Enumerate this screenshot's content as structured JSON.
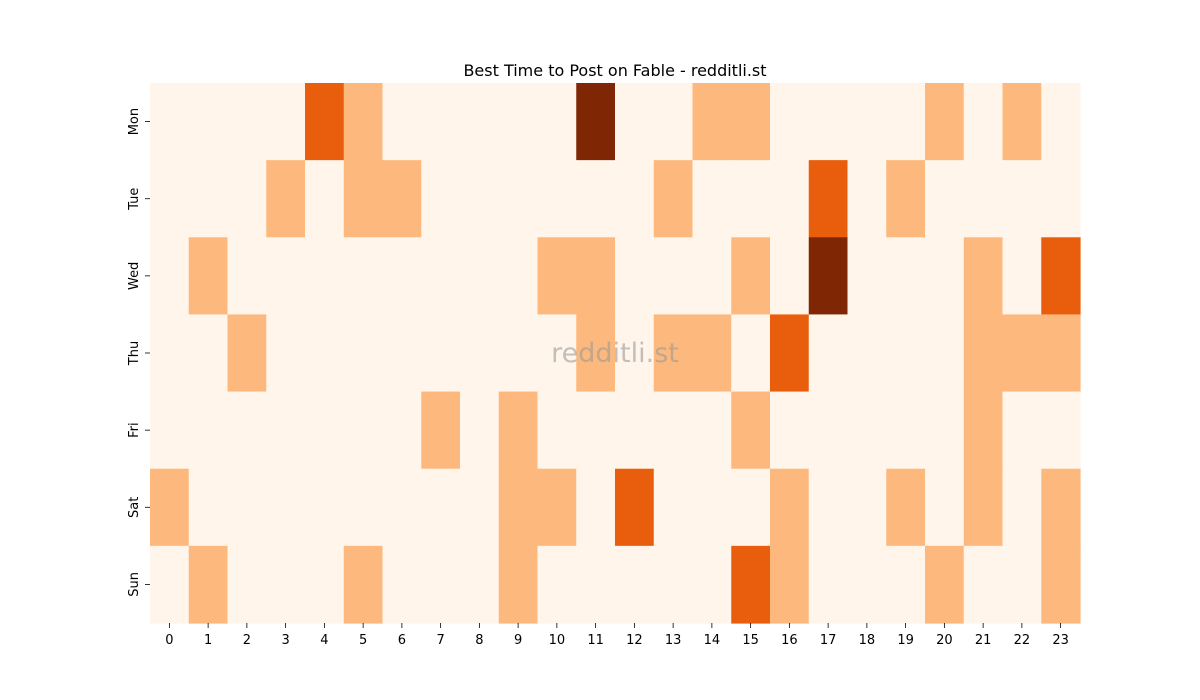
{
  "chart_data": {
    "type": "heatmap",
    "title": "Best Time to Post on Fable - redditli.st",
    "watermark": "redditli.st",
    "x": [
      "0",
      "1",
      "2",
      "3",
      "4",
      "5",
      "6",
      "7",
      "8",
      "9",
      "10",
      "11",
      "12",
      "13",
      "14",
      "15",
      "16",
      "17",
      "18",
      "19",
      "20",
      "21",
      "22",
      "23"
    ],
    "y": [
      "Mon",
      "Tue",
      "Wed",
      "Thu",
      "Fri",
      "Sat",
      "Sun"
    ],
    "values": [
      [
        0,
        0,
        0,
        0,
        2,
        1,
        0,
        0,
        0,
        0,
        0,
        3,
        0,
        0,
        1,
        1,
        0,
        0,
        0,
        0,
        1,
        0,
        1,
        0
      ],
      [
        0,
        0,
        0,
        1,
        0,
        1,
        1,
        0,
        0,
        0,
        0,
        0,
        0,
        1,
        0,
        0,
        0,
        2,
        0,
        1,
        0,
        0,
        0,
        0
      ],
      [
        0,
        1,
        0,
        0,
        0,
        0,
        0,
        0,
        0,
        0,
        1,
        1,
        0,
        0,
        0,
        1,
        0,
        3,
        0,
        0,
        0,
        1,
        0,
        2
      ],
      [
        0,
        0,
        1,
        0,
        0,
        0,
        0,
        0,
        0,
        0,
        0,
        1,
        0,
        1,
        1,
        0,
        2,
        0,
        0,
        0,
        0,
        1,
        1,
        1
      ],
      [
        0,
        0,
        0,
        0,
        0,
        0,
        0,
        1,
        0,
        1,
        0,
        0,
        0,
        0,
        0,
        1,
        0,
        0,
        0,
        0,
        0,
        1,
        0,
        0
      ],
      [
        1,
        0,
        0,
        0,
        0,
        0,
        0,
        0,
        0,
        1,
        1,
        0,
        2,
        0,
        0,
        0,
        1,
        0,
        0,
        1,
        0,
        1,
        0,
        1
      ],
      [
        0,
        1,
        0,
        0,
        0,
        1,
        0,
        0,
        0,
        1,
        0,
        0,
        0,
        0,
        0,
        2,
        1,
        0,
        0,
        0,
        1,
        0,
        0,
        1
      ]
    ],
    "colors": [
      "#fff5eb",
      "#fdb97d",
      "#e95e0d",
      "#7f2704"
    ],
    "colormap": "Oranges",
    "colorbar": false
  }
}
